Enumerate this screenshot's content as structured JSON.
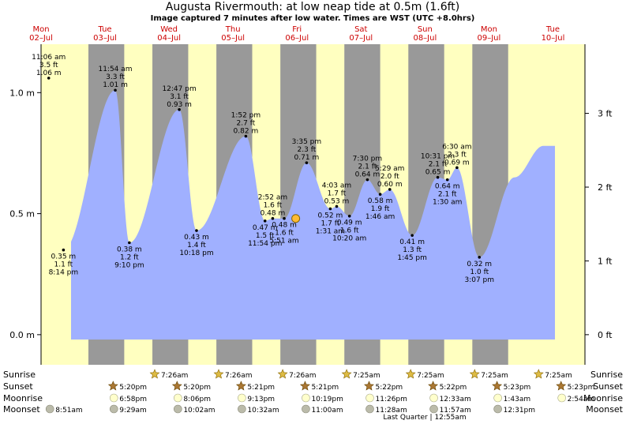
{
  "chart_data": {
    "type": "area",
    "title": "Augusta Rivermouth: at low  neap tide at 0.5m (1.6ft)",
    "subtitle": "Image captured 7 minutes after low water. Times are WST (UTC +8.0hrs)",
    "days": [
      {
        "dow": "Mon",
        "date": "02–Jul"
      },
      {
        "dow": "Tue",
        "date": "03–Jul"
      },
      {
        "dow": "Wed",
        "date": "04–Jul"
      },
      {
        "dow": "Thu",
        "date": "05–Jul"
      },
      {
        "dow": "Fri",
        "date": "06–Jul"
      },
      {
        "dow": "Sat",
        "date": "07–Jul"
      },
      {
        "dow": "Sun",
        "date": "08–Jul"
      },
      {
        "dow": "Mon",
        "date": "09–Jul"
      },
      {
        "dow": "Tue",
        "date": "10–Jul"
      }
    ],
    "y_axis_m": {
      "ticks": [
        {
          "v": 0.0,
          "label": "0.0 m"
        },
        {
          "v": 0.5,
          "label": "0.5 m"
        },
        {
          "v": 1.0,
          "label": "1.0 m"
        }
      ],
      "range": [
        -0.02,
        1.2
      ]
    },
    "y_axis_ft": {
      "ticks": [
        {
          "v": 0,
          "label": "0 ft"
        },
        {
          "v": 1,
          "label": "1 ft"
        },
        {
          "v": 2,
          "label": "2 ft"
        },
        {
          "v": 3,
          "label": "3 ft"
        }
      ]
    },
    "x_range_days": [
      0,
      8.5
    ],
    "now": {
      "day": 3.98,
      "value": 0.48
    },
    "nights": [
      [
        0.74,
        1.3
      ],
      [
        1.74,
        2.3
      ],
      [
        2.74,
        3.3
      ],
      [
        3.74,
        4.3
      ],
      [
        4.74,
        5.3
      ],
      [
        5.74,
        6.3
      ],
      [
        6.74,
        7.3
      ]
    ],
    "extremes": [
      {
        "day": -0.5,
        "value": 0.6
      },
      {
        "day": 0.12,
        "value": 1.06,
        "lines": [
          "11:06 am",
          "3.5 ft",
          "1.06 m"
        ],
        "pos": "above"
      },
      {
        "day": 0.35,
        "value": 0.35,
        "lines": [
          "0.35 m",
          "1.1 ft",
          "8:14 pm"
        ],
        "pos": "below"
      },
      {
        "day": 1.16,
        "value": 1.01,
        "lines": [
          "11:54 am",
          "3.3 ft",
          "1.01 m"
        ],
        "pos": "above"
      },
      {
        "day": 1.38,
        "value": 0.38,
        "lines": [
          "0.38 m",
          "1.2 ft",
          "9:10 pm"
        ],
        "pos": "below"
      },
      {
        "day": 2.16,
        "value": 0.93,
        "lines": [
          "12:47 pm",
          "3.1 ft",
          "0.93 m"
        ],
        "pos": "above"
      },
      {
        "day": 2.43,
        "value": 0.43,
        "lines": [
          "0.43 m",
          "1.4 ft",
          "10:18 pm"
        ],
        "pos": "below"
      },
      {
        "day": 3.2,
        "value": 0.82,
        "lines": [
          "1:52 pm",
          "2.7 ft",
          "0.82 m"
        ],
        "pos": "above"
      },
      {
        "day": 3.5,
        "value": 0.47,
        "lines": [
          "0.47 m",
          "1.5 ft",
          "11:54 pm"
        ],
        "pos": "below"
      },
      {
        "day": 3.62,
        "value": 0.48,
        "lines": [
          "2:52 am",
          "1.6 ft",
          "0.48 m"
        ],
        "pos": "above"
      },
      {
        "day": 3.8,
        "value": 0.48,
        "lines": [
          "0.48 m",
          "1.6 ft",
          "5:51 am"
        ],
        "pos": "below"
      },
      {
        "day": 4.15,
        "value": 0.71,
        "lines": [
          "3:35 pm",
          "2.3 ft",
          "0.71 m"
        ],
        "pos": "above"
      },
      {
        "day": 4.52,
        "value": 0.52,
        "lines": [
          "0.52 m",
          "1.7 ft",
          "1:31 am"
        ],
        "pos": "below"
      },
      {
        "day": 4.62,
        "value": 0.53,
        "lines": [
          "4:03 am",
          "1.7 ft",
          "0.53 m"
        ],
        "pos": "above"
      },
      {
        "day": 4.82,
        "value": 0.49,
        "lines": [
          "0.49 m",
          "1.6 ft",
          "10:20 am"
        ],
        "pos": "below"
      },
      {
        "day": 5.1,
        "value": 0.64,
        "lines": [
          "7:30 pm",
          "2.1 ft",
          "0.64 m"
        ],
        "pos": "above"
      },
      {
        "day": 5.3,
        "value": 0.58,
        "lines": [
          "0.58 m",
          "1.9 ft",
          "1:46 am"
        ],
        "pos": "below"
      },
      {
        "day": 5.45,
        "value": 0.6,
        "lines": [
          "5:29 am",
          "2.0 ft",
          "0.60 m"
        ],
        "pos": "above"
      },
      {
        "day": 5.8,
        "value": 0.41,
        "lines": [
          "0.41 m",
          "1.3 ft",
          "1:45 pm"
        ],
        "pos": "below"
      },
      {
        "day": 6.2,
        "value": 0.65,
        "lines": [
          "10:31 pm",
          "2.1 ft",
          "0.65 m"
        ],
        "pos": "above"
      },
      {
        "day": 6.35,
        "value": 0.64,
        "lines": [
          "0.64 m",
          "2.1 ft",
          "1:30 am"
        ],
        "pos": "below"
      },
      {
        "day": 6.5,
        "value": 0.69,
        "lines": [
          "6:30 am",
          "2.3 ft",
          "0.69 m"
        ],
        "pos": "above"
      },
      {
        "day": 6.85,
        "value": 0.32,
        "lines": [
          "0.32 m",
          "1.0 ft",
          "3:07 pm"
        ],
        "pos": "below"
      },
      {
        "day": 7.4,
        "value": 0.65
      },
      {
        "day": 7.85,
        "value": 0.78
      }
    ],
    "bottom_rows": {
      "labels": [
        "Sunrise",
        "Sunset",
        "Moonrise",
        "Moonset"
      ],
      "sunrise": [
        {
          "day": 1.85,
          "t": "7:26am"
        },
        {
          "day": 2.85,
          "t": "7:26am"
        },
        {
          "day": 3.85,
          "t": "7:26am"
        },
        {
          "day": 4.85,
          "t": "7:25am"
        },
        {
          "day": 5.85,
          "t": "7:25am"
        },
        {
          "day": 6.85,
          "t": "7:25am"
        },
        {
          "day": 7.85,
          "t": "7:25am"
        }
      ],
      "sunset": [
        {
          "day": 1.2,
          "t": "5:20pm"
        },
        {
          "day": 2.2,
          "t": "5:20pm"
        },
        {
          "day": 3.2,
          "t": "5:21pm"
        },
        {
          "day": 4.2,
          "t": "5:21pm"
        },
        {
          "day": 5.2,
          "t": "5:22pm"
        },
        {
          "day": 6.2,
          "t": "5:22pm"
        },
        {
          "day": 7.2,
          "t": "5:23pm"
        },
        {
          "day": 8.2,
          "t": "5:23pm"
        }
      ],
      "moonrise": [
        {
          "day": 1.2,
          "t": "6:58pm"
        },
        {
          "day": 2.2,
          "t": "8:06pm"
        },
        {
          "day": 3.2,
          "t": "9:13pm"
        },
        {
          "day": 4.2,
          "t": "10:19pm"
        },
        {
          "day": 5.2,
          "t": "11:26pm"
        },
        {
          "day": 6.2,
          "t": "12:33am"
        },
        {
          "day": 7.2,
          "t": "1:43am"
        },
        {
          "day": 8.2,
          "t": "2:54am"
        }
      ],
      "moonset": [
        {
          "day": 0.2,
          "t": "8:51am"
        },
        {
          "day": 1.2,
          "t": "9:29am"
        },
        {
          "day": 2.2,
          "t": "10:02am"
        },
        {
          "day": 3.2,
          "t": "10:32am"
        },
        {
          "day": 4.2,
          "t": "11:00am"
        },
        {
          "day": 5.2,
          "t": "11:28am"
        },
        {
          "day": 6.2,
          "t": "11:57am"
        },
        {
          "day": 7.2,
          "t": "12:31pm"
        }
      ],
      "moon_phase": "Last Quarter | 12:55am"
    },
    "colors": {
      "day": "#ffffc0",
      "night": "#999999",
      "water": "#a0b0ff",
      "label_red": "#cc0000",
      "star": "#ddbb44",
      "star_dark": "#aa7733",
      "moon_light": "#ffffcc",
      "moon_dark": "#bbbbaa",
      "marker": "#ffbb33"
    }
  }
}
